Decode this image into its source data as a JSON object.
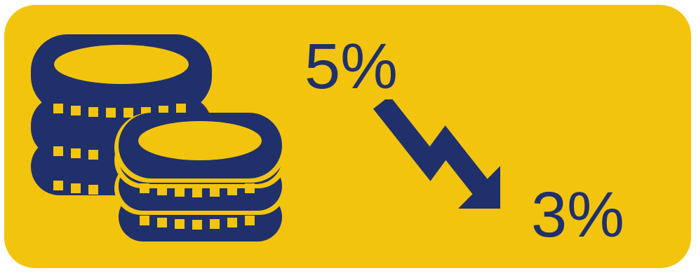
{
  "rates": {
    "from": "5%",
    "to": "3%"
  },
  "icons": {
    "coins": "coin-stack-icon",
    "trend": "zigzag-down-arrow-icon"
  },
  "colors": {
    "background": "#f2c40e",
    "foreground": "#20306b"
  }
}
